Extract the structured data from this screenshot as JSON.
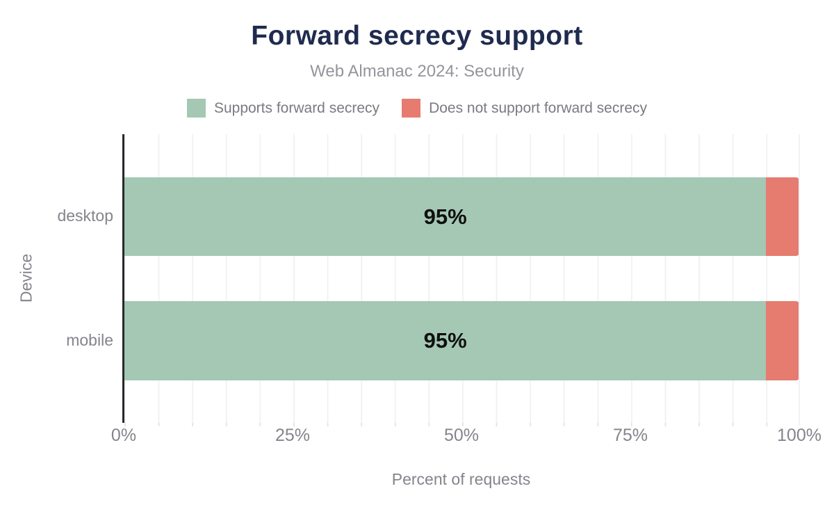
{
  "title": "Forward secrecy support",
  "subtitle": "Web Almanac 2024: Security",
  "legend": [
    {
      "label": "Supports forward secrecy",
      "color": "#a4c8b4"
    },
    {
      "label": "Does not support forward secrecy",
      "color": "#e67b70"
    }
  ],
  "chart_data": {
    "type": "bar",
    "orientation": "horizontal",
    "stacked": true,
    "categories": [
      "desktop",
      "mobile"
    ],
    "series": [
      {
        "name": "Supports forward secrecy",
        "color": "#a4c8b4",
        "values": [
          95,
          95
        ]
      },
      {
        "name": "Does not support forward secrecy",
        "color": "#e67b70",
        "values": [
          5,
          5
        ]
      }
    ],
    "bar_labels": [
      "95%",
      "95%"
    ],
    "title": "Forward secrecy support",
    "subtitle": "Web Almanac 2024: Security",
    "xlabel": "Percent of requests",
    "ylabel": "Device",
    "xlim": [
      0,
      100
    ],
    "x_ticks": [
      "0%",
      "25%",
      "50%",
      "75%",
      "100%"
    ],
    "grid": "vertical gridlines every 5%, legend top-center"
  },
  "colors": {
    "title_text": "#1f2b4e",
    "muted_text": "#84848c",
    "subtitle_text": "#94949b",
    "axis_line": "#26282b",
    "gridline": "#f2f2f6",
    "bar_value_text": "#101010",
    "background": "#ffffff"
  }
}
